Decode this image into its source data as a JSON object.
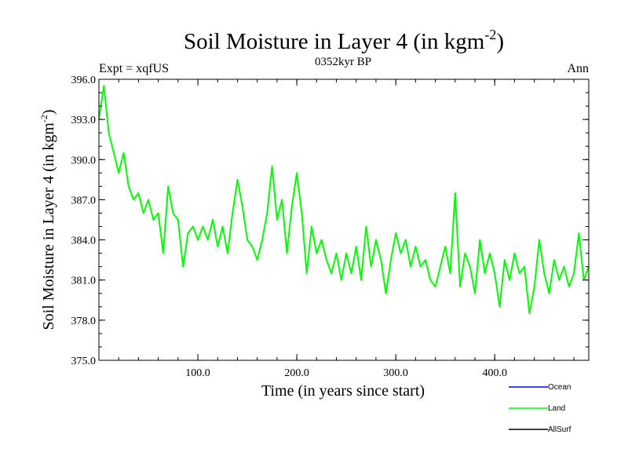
{
  "chart_data": {
    "type": "line",
    "title_main": "Soil Moisture in Layer 4 (in kgm",
    "title_sup": "-2",
    "title_close": ")",
    "subtitle_left": "Expt = xqfUS",
    "subtitle_center": "0352kyr BP",
    "subtitle_right": "Ann",
    "xlabel": "Time (in years since start)",
    "ylabel_main": "Soil Moisture in Layer 4 (in kgm",
    "ylabel_sup": "-2",
    "ylabel_close": ")",
    "xlim": [
      0,
      495
    ],
    "ylim": [
      375.0,
      396.0
    ],
    "x_ticks": [
      100,
      200,
      300,
      400
    ],
    "x_tick_labels": [
      "100.0",
      "200.0",
      "300.0",
      "400.0"
    ],
    "y_ticks": [
      375,
      378,
      381,
      384,
      387,
      390,
      393,
      396
    ],
    "y_tick_labels": [
      "375.0",
      "378.0",
      "381.0",
      "384.0",
      "387.0",
      "390.0",
      "393.0",
      "396.0"
    ],
    "legend": [
      {
        "name": "Ocean",
        "color": "#0000ff"
      },
      {
        "name": "Land",
        "color": "#00ff00"
      },
      {
        "name": "AllSurf",
        "color": "#000000"
      }
    ],
    "series": [
      {
        "name": "Land",
        "color": "#00ff00",
        "x": [
          0,
          5,
          10,
          15,
          20,
          25,
          30,
          35,
          40,
          45,
          50,
          55,
          60,
          65,
          70,
          75,
          80,
          85,
          90,
          95,
          100,
          105,
          110,
          115,
          120,
          125,
          130,
          135,
          140,
          145,
          150,
          155,
          160,
          165,
          170,
          175,
          180,
          185,
          190,
          195,
          200,
          205,
          210,
          215,
          220,
          225,
          230,
          235,
          240,
          245,
          250,
          255,
          260,
          265,
          270,
          275,
          280,
          285,
          290,
          295,
          300,
          305,
          310,
          315,
          320,
          325,
          330,
          335,
          340,
          345,
          350,
          355,
          360,
          365,
          370,
          375,
          380,
          385,
          390,
          395,
          400,
          405,
          410,
          415,
          420,
          425,
          430,
          435,
          440,
          445,
          450,
          455,
          460,
          465,
          470,
          475,
          480,
          485,
          490,
          495
        ],
        "values": [
          393.0,
          395.5,
          392.0,
          390.5,
          389.0,
          390.5,
          388.0,
          387.0,
          387.5,
          386.0,
          387.0,
          385.5,
          386.0,
          383.0,
          388.0,
          386.0,
          385.5,
          382.0,
          384.5,
          385.0,
          384.0,
          385.0,
          384.0,
          385.5,
          383.5,
          385.0,
          383.0,
          386.0,
          388.5,
          386.5,
          384.0,
          383.5,
          382.5,
          384.0,
          386.0,
          389.5,
          385.5,
          387.0,
          383.0,
          386.5,
          389.0,
          386.0,
          381.5,
          385.0,
          383.0,
          384.0,
          382.5,
          381.5,
          383.0,
          381.0,
          383.0,
          381.5,
          383.5,
          381.0,
          385.0,
          382.0,
          384.0,
          382.5,
          380.0,
          382.5,
          384.5,
          383.0,
          384.0,
          382.0,
          383.5,
          382.0,
          382.5,
          381.0,
          380.5,
          382.0,
          383.5,
          381.5,
          387.5,
          380.5,
          383.0,
          382.0,
          380.0,
          384.0,
          381.5,
          383.0,
          381.5,
          379.0,
          382.5,
          381.0,
          383.0,
          381.5,
          382.0,
          378.5,
          380.5,
          384.0,
          381.5,
          380.0,
          382.5,
          381.0,
          382.0,
          380.5,
          381.5,
          384.5,
          381.0,
          382.0
        ]
      }
    ]
  }
}
